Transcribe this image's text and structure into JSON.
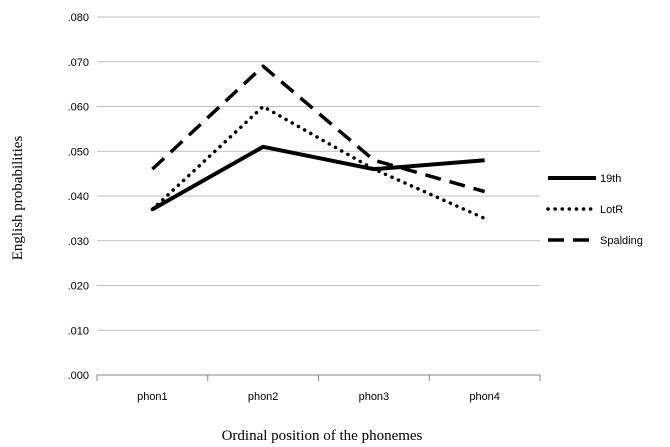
{
  "chart_data": {
    "type": "line",
    "categories": [
      "phon1",
      "phon2",
      "phon3",
      "phon4"
    ],
    "series": [
      {
        "name": "19th",
        "values": [
          0.037,
          0.051,
          0.046,
          0.048
        ],
        "style": "solid"
      },
      {
        "name": "LotR",
        "values": [
          0.037,
          0.06,
          0.046,
          0.035
        ],
        "style": "dotted"
      },
      {
        "name": "Spalding",
        "values": [
          0.046,
          0.069,
          0.048,
          0.041
        ],
        "style": "dashed"
      }
    ],
    "yticks": [
      ".000",
      ".010",
      ".020",
      ".030",
      ".040",
      ".050",
      ".060",
      ".070",
      ".080"
    ],
    "ylim": [
      0,
      0.08
    ],
    "xlabel": "Ordinal position of the phonemes",
    "ylabel": "English probabilities",
    "grid": true,
    "legend_position": "right",
    "colors": {
      "line": "#000000",
      "grid": "#bfbfbf",
      "axis": "#868686"
    }
  }
}
